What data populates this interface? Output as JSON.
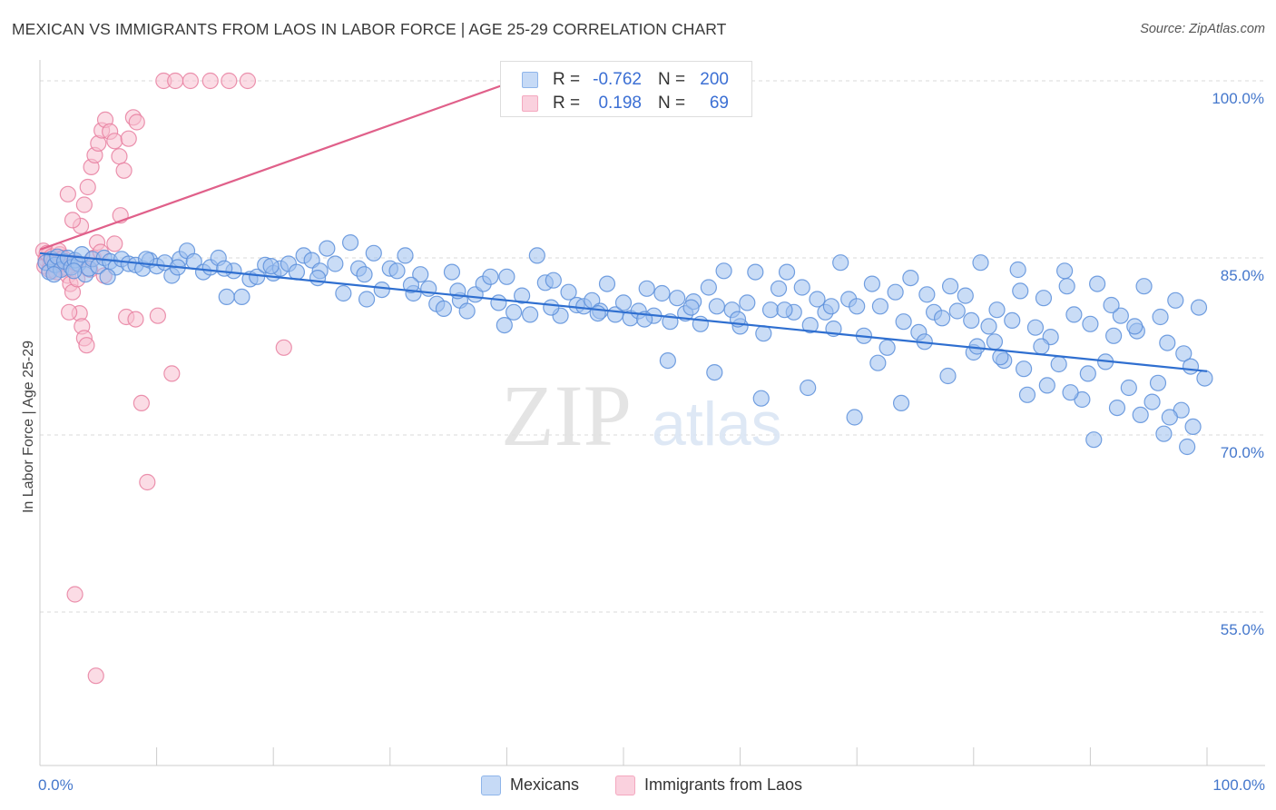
{
  "header": {
    "title": "MEXICAN VS IMMIGRANTS FROM LAOS IN LABOR FORCE | AGE 25-29 CORRELATION CHART",
    "source": "Source: ZipAtlas.com"
  },
  "watermark": {
    "zip": "ZIP",
    "atlas": "atlas"
  },
  "legend": {
    "rows": [
      {
        "r_label": "R =",
        "r_value": "-0.762",
        "n_label": "N =",
        "n_value": "200",
        "color": "#8fb5ea"
      },
      {
        "r_label": "R =",
        "r_value": "0.198",
        "n_label": "N =",
        "n_value": "69",
        "color": "#f4a8bf"
      }
    ]
  },
  "bottom_legend": [
    {
      "label": "Mexicans",
      "color": "#8fb5ea"
    },
    {
      "label": "Immigrants from Laos",
      "color": "#f4a8bf"
    }
  ],
  "colors": {
    "blue_fill": "#9dbfee",
    "blue_stroke": "#5c8fdb",
    "blue_line": "#2f6fd0",
    "pink_fill": "#f7c0d0",
    "pink_stroke": "#e77fa0",
    "pink_line": "#e0608a",
    "grid": "#d8d8d8",
    "axis_label": "#4477cc"
  },
  "chart_data": {
    "type": "scatter",
    "title": "MEXICAN VS IMMIGRANTS FROM LAOS IN LABOR FORCE | AGE 25-29 CORRELATION CHART",
    "xlabel": "",
    "ylabel": "In Labor Force | Age 25-29",
    "xlim": [
      0,
      100
    ],
    "ylim": [
      42,
      101
    ],
    "x_tick_labels": [
      "0.0%",
      "100.0%"
    ],
    "y_ticks": [
      55,
      70,
      85,
      100
    ],
    "y_tick_labels": [
      "55.0%",
      "70.0%",
      "85.0%",
      "100.0%"
    ],
    "grid": true,
    "legend_position": "top-center",
    "series": [
      {
        "name": "Mexicans",
        "r": -0.762,
        "n": 200,
        "trend": {
          "x": [
            0,
            100
          ],
          "y": [
            85.4,
            75.4
          ]
        },
        "points": [
          [
            0.5,
            84.6
          ],
          [
            0.8,
            83.8
          ],
          [
            1.0,
            84.9
          ],
          [
            1.3,
            84.4
          ],
          [
            1.5,
            85.1
          ],
          [
            1.8,
            84.0
          ],
          [
            2.1,
            84.7
          ],
          [
            2.4,
            85.0
          ],
          [
            2.7,
            84.2
          ],
          [
            3.0,
            84.8
          ],
          [
            3.3,
            84.5
          ],
          [
            3.6,
            85.3
          ],
          [
            3.9,
            83.6
          ],
          [
            4.2,
            84.1
          ],
          [
            4.5,
            84.9
          ],
          [
            5.0,
            84.3
          ],
          [
            5.5,
            85.0
          ],
          [
            6.0,
            84.7
          ],
          [
            6.5,
            84.2
          ],
          [
            7.0,
            84.9
          ],
          [
            7.6,
            84.5
          ],
          [
            8.2,
            84.4
          ],
          [
            8.8,
            84.1
          ],
          [
            9.4,
            84.8
          ],
          [
            10.0,
            84.3
          ],
          [
            10.7,
            84.6
          ],
          [
            11.3,
            83.5
          ],
          [
            12.0,
            84.9
          ],
          [
            12.6,
            85.6
          ],
          [
            13.2,
            84.7
          ],
          [
            14.0,
            83.8
          ],
          [
            14.6,
            84.2
          ],
          [
            15.3,
            85.0
          ],
          [
            16.0,
            81.7
          ],
          [
            16.6,
            83.9
          ],
          [
            17.3,
            81.7
          ],
          [
            18.0,
            83.2
          ],
          [
            18.6,
            83.4
          ],
          [
            19.3,
            84.4
          ],
          [
            20.0,
            83.7
          ],
          [
            20.6,
            84.1
          ],
          [
            21.3,
            84.5
          ],
          [
            22.0,
            83.8
          ],
          [
            22.6,
            85.2
          ],
          [
            23.3,
            84.8
          ],
          [
            24.0,
            83.9
          ],
          [
            24.6,
            85.8
          ],
          [
            25.3,
            84.5
          ],
          [
            26.0,
            82.0
          ],
          [
            26.6,
            86.3
          ],
          [
            27.3,
            84.1
          ],
          [
            28.0,
            81.5
          ],
          [
            28.6,
            85.4
          ],
          [
            29.3,
            82.3
          ],
          [
            30.0,
            84.1
          ],
          [
            30.6,
            83.9
          ],
          [
            31.3,
            85.2
          ],
          [
            32.0,
            82.0
          ],
          [
            32.6,
            83.6
          ],
          [
            33.3,
            82.4
          ],
          [
            34.0,
            81.1
          ],
          [
            34.6,
            80.7
          ],
          [
            35.3,
            83.8
          ],
          [
            36.0,
            81.4
          ],
          [
            36.6,
            80.5
          ],
          [
            37.3,
            81.9
          ],
          [
            38.0,
            82.8
          ],
          [
            38.6,
            83.4
          ],
          [
            39.3,
            81.2
          ],
          [
            40.0,
            83.4
          ],
          [
            40.6,
            80.4
          ],
          [
            41.3,
            81.8
          ],
          [
            42.0,
            80.2
          ],
          [
            42.6,
            85.2
          ],
          [
            43.3,
            82.9
          ],
          [
            44.0,
            83.1
          ],
          [
            44.6,
            80.1
          ],
          [
            45.3,
            82.1
          ],
          [
            46.0,
            81.0
          ],
          [
            46.6,
            80.9
          ],
          [
            47.3,
            81.4
          ],
          [
            48.0,
            80.5
          ],
          [
            48.6,
            82.8
          ],
          [
            49.3,
            80.2
          ],
          [
            50.0,
            81.2
          ],
          [
            50.6,
            79.9
          ],
          [
            51.3,
            80.5
          ],
          [
            52.0,
            82.4
          ],
          [
            52.6,
            80.1
          ],
          [
            53.3,
            82.0
          ],
          [
            54.0,
            79.6
          ],
          [
            54.6,
            81.6
          ],
          [
            55.3,
            80.3
          ],
          [
            56.0,
            81.3
          ],
          [
            56.6,
            79.4
          ],
          [
            57.3,
            82.5
          ],
          [
            58.0,
            80.9
          ],
          [
            58.6,
            83.9
          ],
          [
            59.3,
            80.6
          ],
          [
            60.0,
            79.2
          ],
          [
            60.6,
            81.2
          ],
          [
            61.3,
            83.8
          ],
          [
            62.0,
            78.6
          ],
          [
            62.6,
            80.6
          ],
          [
            63.3,
            82.4
          ],
          [
            64.0,
            83.8
          ],
          [
            64.6,
            80.4
          ],
          [
            65.3,
            82.5
          ],
          [
            66.0,
            79.3
          ],
          [
            66.6,
            81.5
          ],
          [
            67.3,
            80.4
          ],
          [
            68.0,
            79.0
          ],
          [
            68.6,
            84.6
          ],
          [
            69.3,
            81.5
          ],
          [
            70.0,
            80.9
          ],
          [
            70.6,
            78.4
          ],
          [
            71.3,
            82.8
          ],
          [
            72.0,
            80.9
          ],
          [
            72.6,
            77.4
          ],
          [
            73.3,
            82.1
          ],
          [
            74.0,
            79.6
          ],
          [
            74.6,
            83.3
          ],
          [
            75.3,
            78.7
          ],
          [
            76.0,
            81.9
          ],
          [
            76.6,
            80.4
          ],
          [
            77.3,
            79.9
          ],
          [
            78.0,
            82.6
          ],
          [
            78.6,
            80.5
          ],
          [
            79.3,
            81.8
          ],
          [
            80.0,
            77.0
          ],
          [
            80.6,
            84.6
          ],
          [
            81.3,
            79.2
          ],
          [
            82.0,
            80.6
          ],
          [
            82.6,
            76.3
          ],
          [
            83.3,
            79.7
          ],
          [
            84.0,
            82.2
          ],
          [
            84.6,
            73.4
          ],
          [
            85.3,
            79.1
          ],
          [
            86.0,
            81.6
          ],
          [
            86.6,
            78.3
          ],
          [
            87.3,
            76.0
          ],
          [
            88.0,
            82.6
          ],
          [
            88.6,
            80.2
          ],
          [
            89.3,
            73.0
          ],
          [
            90.0,
            79.4
          ],
          [
            90.6,
            82.8
          ],
          [
            91.3,
            76.2
          ],
          [
            92.0,
            78.4
          ],
          [
            92.6,
            80.1
          ],
          [
            93.3,
            74.0
          ],
          [
            94.0,
            78.8
          ],
          [
            94.6,
            82.6
          ],
          [
            95.3,
            72.8
          ],
          [
            96.0,
            80.0
          ],
          [
            96.6,
            77.8
          ],
          [
            97.3,
            81.4
          ],
          [
            98.0,
            76.9
          ],
          [
            98.6,
            75.8
          ],
          [
            99.3,
            80.8
          ],
          [
            99.8,
            74.8
          ],
          [
            1.2,
            83.6
          ],
          [
            2.9,
            83.9
          ],
          [
            5.8,
            83.4
          ],
          [
            9.1,
            84.9
          ],
          [
            11.8,
            84.2
          ],
          [
            15.8,
            84.1
          ],
          [
            19.8,
            84.3
          ],
          [
            23.8,
            83.3
          ],
          [
            27.8,
            83.6
          ],
          [
            31.8,
            82.7
          ],
          [
            35.8,
            82.2
          ],
          [
            39.8,
            79.3
          ],
          [
            43.8,
            80.8
          ],
          [
            47.8,
            80.3
          ],
          [
            51.8,
            79.8
          ],
          [
            55.8,
            80.8
          ],
          [
            59.8,
            79.8
          ],
          [
            63.8,
            80.6
          ],
          [
            67.8,
            80.9
          ],
          [
            71.8,
            76.1
          ],
          [
            75.8,
            77.9
          ],
          [
            79.8,
            79.7
          ],
          [
            83.8,
            84.0
          ],
          [
            87.8,
            83.9
          ],
          [
            91.8,
            81.0
          ],
          [
            95.8,
            74.4
          ],
          [
            97.8,
            72.1
          ],
          [
            93.8,
            79.2
          ],
          [
            89.8,
            75.2
          ],
          [
            85.8,
            77.5
          ],
          [
            81.8,
            77.9
          ],
          [
            77.8,
            75.0
          ],
          [
            73.8,
            72.7
          ],
          [
            69.8,
            71.5
          ],
          [
            65.8,
            74.0
          ],
          [
            61.8,
            73.1
          ],
          [
            57.8,
            75.3
          ],
          [
            53.8,
            76.3
          ],
          [
            96.3,
            70.1
          ],
          [
            98.3,
            69.0
          ],
          [
            98.8,
            70.7
          ],
          [
            96.8,
            71.5
          ],
          [
            94.3,
            71.7
          ],
          [
            92.3,
            72.3
          ],
          [
            90.3,
            69.6
          ],
          [
            88.3,
            73.6
          ],
          [
            86.3,
            74.2
          ],
          [
            84.3,
            75.6
          ],
          [
            82.3,
            76.6
          ],
          [
            80.3,
            77.5
          ]
        ]
      },
      {
        "name": "Immigrants from Laos",
        "r": 0.198,
        "n": 69,
        "trend": {
          "x": [
            0,
            40.7
          ],
          "y": [
            85.7,
            100.0
          ]
        },
        "points": [
          [
            0.3,
            85.6
          ],
          [
            0.5,
            84.9
          ],
          [
            0.7,
            85.2
          ],
          [
            0.9,
            84.6
          ],
          [
            1.1,
            83.9
          ],
          [
            1.3,
            85.0
          ],
          [
            1.5,
            84.4
          ],
          [
            1.7,
            85.3
          ],
          [
            1.9,
            84.8
          ],
          [
            2.1,
            84.1
          ],
          [
            0.4,
            84.3
          ],
          [
            0.6,
            85.4
          ],
          [
            0.8,
            84.0
          ],
          [
            1.0,
            85.1
          ],
          [
            1.2,
            84.7
          ],
          [
            1.4,
            83.8
          ],
          [
            1.6,
            85.6
          ],
          [
            1.8,
            84.5
          ],
          [
            2.0,
            85.0
          ],
          [
            2.2,
            84.2
          ],
          [
            2.4,
            83.5
          ],
          [
            2.6,
            82.8
          ],
          [
            2.8,
            82.1
          ],
          [
            3.0,
            84.6
          ],
          [
            3.2,
            83.2
          ],
          [
            3.4,
            80.3
          ],
          [
            3.6,
            79.2
          ],
          [
            3.8,
            78.2
          ],
          [
            4.0,
            77.6
          ],
          [
            2.5,
            80.4
          ],
          [
            4.3,
            84.0
          ],
          [
            4.6,
            85.0
          ],
          [
            4.9,
            86.3
          ],
          [
            5.2,
            85.5
          ],
          [
            5.5,
            83.5
          ],
          [
            3.5,
            87.7
          ],
          [
            3.8,
            89.5
          ],
          [
            4.1,
            91.0
          ],
          [
            4.4,
            92.7
          ],
          [
            4.7,
            93.7
          ],
          [
            5.0,
            94.7
          ],
          [
            5.3,
            95.8
          ],
          [
            5.6,
            96.7
          ],
          [
            6.0,
            95.7
          ],
          [
            6.4,
            94.9
          ],
          [
            6.8,
            93.6
          ],
          [
            7.2,
            92.4
          ],
          [
            7.6,
            95.1
          ],
          [
            8.0,
            96.9
          ],
          [
            8.3,
            96.5
          ],
          [
            2.8,
            88.2
          ],
          [
            2.4,
            90.4
          ],
          [
            6.4,
            86.2
          ],
          [
            6.9,
            88.6
          ],
          [
            7.4,
            80.0
          ],
          [
            8.2,
            79.8
          ],
          [
            8.7,
            72.7
          ],
          [
            9.2,
            66.0
          ],
          [
            10.1,
            80.1
          ],
          [
            11.3,
            75.2
          ],
          [
            10.6,
            100.0
          ],
          [
            11.6,
            100.0
          ],
          [
            12.9,
            100.0
          ],
          [
            14.6,
            100.0
          ],
          [
            16.2,
            100.0
          ],
          [
            17.8,
            100.0
          ],
          [
            20.9,
            77.4
          ],
          [
            3.0,
            56.5
          ],
          [
            4.8,
            49.6
          ]
        ]
      }
    ]
  }
}
